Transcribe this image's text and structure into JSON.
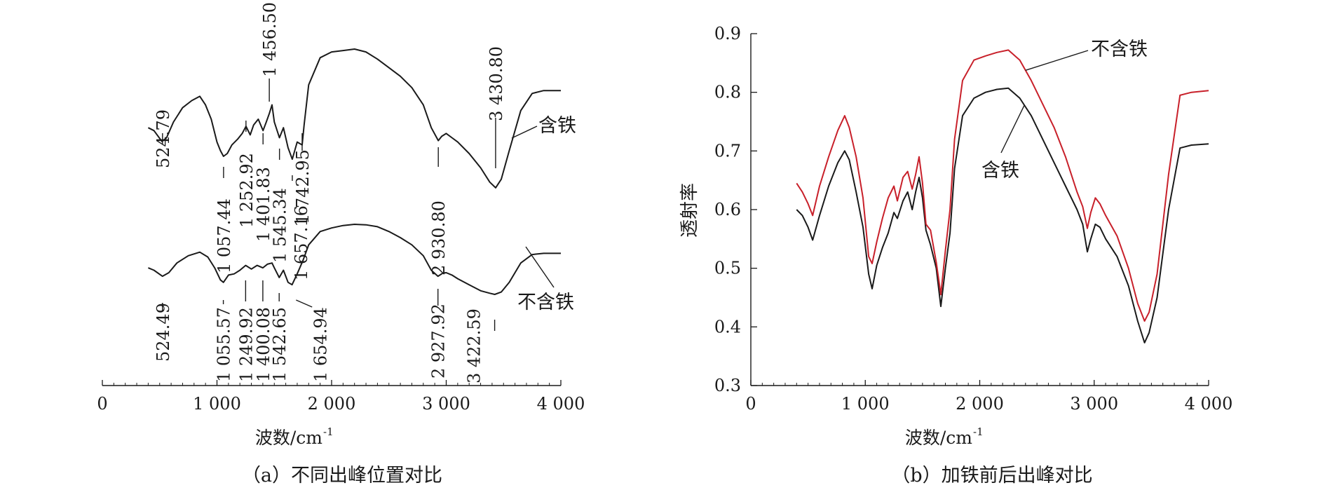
{
  "colors": {
    "ink": "#1a1a1a",
    "red": "#c8202a"
  },
  "chart_data": [
    {
      "type": "line",
      "caption": "（a）不同出峰位置对比",
      "xlabel": "波数/cm",
      "xlabel_sup": "-1",
      "xlim": [
        0,
        4000
      ],
      "xticks": [
        0,
        1000,
        2000,
        3000,
        4000
      ],
      "xtick_labels": [
        "0",
        "1 000",
        "2 000",
        "3 000",
        "4 000"
      ],
      "y_axis_visible": false,
      "series": [
        {
          "name": "含铁",
          "color": "#1a1a1a",
          "x": [
            400,
            450,
            520,
            560,
            620,
            700,
            780,
            850,
            900,
            950,
            1000,
            1030,
            1057,
            1090,
            1130,
            1180,
            1220,
            1253,
            1290,
            1320,
            1360,
            1402,
            1430,
            1457,
            1480,
            1500,
            1545,
            1580,
            1620,
            1657,
            1700,
            1743,
            1760,
            1800,
            1900,
            2000,
            2100,
            2200,
            2300,
            2400,
            2500,
            2600,
            2700,
            2800,
            2870,
            2931,
            2960,
            3000,
            3050,
            3100,
            3200,
            3300,
            3380,
            3431,
            3480,
            3550,
            3650,
            3750,
            3850,
            4000
          ],
          "y": [
            0.62,
            0.61,
            0.572,
            0.585,
            0.64,
            0.69,
            0.715,
            0.73,
            0.7,
            0.65,
            0.57,
            0.54,
            0.52,
            0.53,
            0.56,
            0.58,
            0.6,
            0.625,
            0.595,
            0.63,
            0.65,
            0.61,
            0.64,
            0.67,
            0.7,
            0.64,
            0.585,
            0.62,
            0.55,
            0.51,
            0.57,
            0.56,
            0.63,
            0.77,
            0.865,
            0.885,
            0.89,
            0.895,
            0.885,
            0.86,
            0.83,
            0.8,
            0.76,
            0.7,
            0.62,
            0.575,
            0.59,
            0.6,
            0.585,
            0.57,
            0.53,
            0.48,
            0.43,
            0.41,
            0.44,
            0.54,
            0.68,
            0.74,
            0.75,
            0.75
          ]
        },
        {
          "name": "不含铁",
          "color": "#1a1a1a",
          "x": [
            400,
            450,
            524,
            580,
            650,
            750,
            850,
            920,
            980,
            1030,
            1056,
            1100,
            1150,
            1200,
            1250,
            1300,
            1350,
            1400,
            1440,
            1480,
            1500,
            1543,
            1580,
            1620,
            1655,
            1700,
            1750,
            1800,
            1900,
            2000,
            2100,
            2200,
            2300,
            2400,
            2500,
            2600,
            2700,
            2800,
            2870,
            2928,
            2970,
            3000,
            3050,
            3100,
            3200,
            3300,
            3380,
            3423,
            3480,
            3550,
            3650,
            3750,
            3850,
            4000
          ],
          "y": [
            0.49,
            0.48,
            0.455,
            0.47,
            0.51,
            0.54,
            0.555,
            0.535,
            0.49,
            0.44,
            0.43,
            0.46,
            0.465,
            0.48,
            0.5,
            0.485,
            0.5,
            0.49,
            0.505,
            0.51,
            0.49,
            0.45,
            0.48,
            0.43,
            0.42,
            0.465,
            0.52,
            0.585,
            0.64,
            0.655,
            0.665,
            0.67,
            0.668,
            0.66,
            0.64,
            0.615,
            0.585,
            0.54,
            0.48,
            0.455,
            0.468,
            0.47,
            0.46,
            0.445,
            0.42,
            0.395,
            0.385,
            0.38,
            0.39,
            0.43,
            0.51,
            0.545,
            0.55,
            0.55
          ]
        }
      ],
      "annotations": [
        {
          "text": "524.79",
          "series": "含铁",
          "x": 524.79
        },
        {
          "text": "1 057.44",
          "series": "含铁",
          "x": 1057.44
        },
        {
          "text": "1 252.92",
          "series": "含铁",
          "x": 1252.92
        },
        {
          "text": "1 401.83",
          "series": "含铁",
          "x": 1401.83
        },
        {
          "text": "1 456.50",
          "series": "含铁",
          "x": 1456.5
        },
        {
          "text": "1 545.34",
          "series": "含铁",
          "x": 1545.34
        },
        {
          "text": "1 657.16",
          "series": "含铁",
          "x": 1657.16
        },
        {
          "text": "1 742.95",
          "series": "含铁",
          "x": 1742.95
        },
        {
          "text": "2 930.80",
          "series": "含铁",
          "x": 2930.8
        },
        {
          "text": "3 430.80",
          "series": "含铁",
          "x": 3430.8
        },
        {
          "text": "524.49",
          "series": "不含铁",
          "x": 524.49
        },
        {
          "text": "1 055.57",
          "series": "不含铁",
          "x": 1055.57
        },
        {
          "text": "1 249.92",
          "series": "不含铁",
          "x": 1249.92
        },
        {
          "text": "1 400.08",
          "series": "不含铁",
          "x": 1400.08
        },
        {
          "text": "1 542.65",
          "series": "不含铁",
          "x": 1542.65
        },
        {
          "text": "1 654.94",
          "series": "不含铁",
          "x": 1654.94
        },
        {
          "text": "2 927.92",
          "series": "不含铁",
          "x": 2927.92
        },
        {
          "text": "3 422.59",
          "series": "不含铁",
          "x": 3422.59
        }
      ]
    },
    {
      "type": "line",
      "caption": "（b）加铁前后出峰对比",
      "xlabel": "波数/cm",
      "xlabel_sup": "-1",
      "ylabel": "透射率",
      "xlim": [
        0,
        4000
      ],
      "ylim": [
        0.3,
        0.9
      ],
      "xticks": [
        0,
        1000,
        2000,
        3000,
        4000
      ],
      "xtick_labels": [
        "0",
        "1 000",
        "2 000",
        "3 000",
        "4 000"
      ],
      "yticks": [
        0.3,
        0.4,
        0.5,
        0.6,
        0.7,
        0.8,
        0.9
      ],
      "ytick_labels": [
        "0.3",
        "0.4",
        "0.5",
        "0.6",
        "0.7",
        "0.8",
        "0.9"
      ],
      "series": [
        {
          "name": "含铁",
          "color": "#1a1a1a",
          "x": [
            400,
            450,
            500,
            540,
            600,
            680,
            760,
            820,
            860,
            920,
            980,
            1030,
            1060,
            1100,
            1150,
            1200,
            1250,
            1280,
            1330,
            1370,
            1410,
            1440,
            1470,
            1500,
            1530,
            1570,
            1620,
            1660,
            1700,
            1740,
            1780,
            1850,
            1950,
            2050,
            2150,
            2250,
            2350,
            2450,
            2550,
            2650,
            2750,
            2850,
            2900,
            2940,
            2970,
            3010,
            3050,
            3100,
            3200,
            3300,
            3380,
            3440,
            3480,
            3550,
            3650,
            3750,
            3850,
            4000
          ],
          "y": [
            0.6,
            0.59,
            0.57,
            0.548,
            0.59,
            0.64,
            0.68,
            0.7,
            0.685,
            0.63,
            0.57,
            0.49,
            0.465,
            0.505,
            0.535,
            0.56,
            0.595,
            0.585,
            0.615,
            0.63,
            0.6,
            0.63,
            0.655,
            0.62,
            0.565,
            0.54,
            0.5,
            0.435,
            0.5,
            0.56,
            0.67,
            0.76,
            0.79,
            0.8,
            0.805,
            0.807,
            0.79,
            0.76,
            0.72,
            0.68,
            0.64,
            0.6,
            0.575,
            0.528,
            0.55,
            0.575,
            0.57,
            0.55,
            0.52,
            0.47,
            0.41,
            0.373,
            0.39,
            0.45,
            0.6,
            0.705,
            0.71,
            0.712
          ]
        },
        {
          "name": "不含铁",
          "color": "#c8202a",
          "x": [
            400,
            450,
            500,
            540,
            600,
            680,
            760,
            820,
            860,
            920,
            980,
            1030,
            1060,
            1100,
            1150,
            1200,
            1250,
            1280,
            1330,
            1370,
            1410,
            1440,
            1470,
            1500,
            1530,
            1570,
            1620,
            1660,
            1700,
            1740,
            1780,
            1850,
            1950,
            2050,
            2150,
            2250,
            2350,
            2450,
            2550,
            2650,
            2750,
            2850,
            2900,
            2940,
            2970,
            3010,
            3050,
            3100,
            3200,
            3300,
            3380,
            3440,
            3480,
            3550,
            3650,
            3750,
            3850,
            4000
          ],
          "y": [
            0.645,
            0.63,
            0.61,
            0.59,
            0.64,
            0.69,
            0.735,
            0.76,
            0.74,
            0.69,
            0.62,
            0.52,
            0.508,
            0.545,
            0.585,
            0.62,
            0.64,
            0.615,
            0.655,
            0.665,
            0.635,
            0.66,
            0.69,
            0.645,
            0.575,
            0.565,
            0.51,
            0.455,
            0.53,
            0.6,
            0.72,
            0.82,
            0.855,
            0.862,
            0.868,
            0.872,
            0.855,
            0.82,
            0.78,
            0.74,
            0.69,
            0.63,
            0.605,
            0.568,
            0.595,
            0.62,
            0.61,
            0.59,
            0.555,
            0.5,
            0.44,
            0.41,
            0.425,
            0.49,
            0.66,
            0.795,
            0.8,
            0.803
          ]
        }
      ],
      "annotations": [
        {
          "text": "不含铁",
          "series": "不含铁"
        },
        {
          "text": "含铁",
          "series": "含铁"
        }
      ]
    }
  ]
}
